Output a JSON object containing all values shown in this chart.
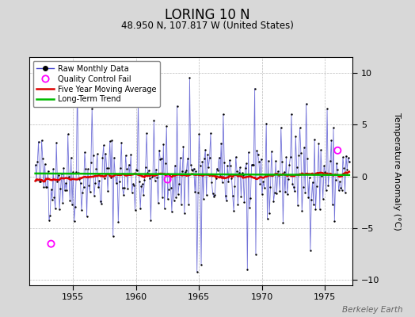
{
  "title": "LORING 10 N",
  "subtitle": "48.950 N, 107.817 W (United States)",
  "ylabel": "Temperature Anomaly (°C)",
  "watermark": "Berkeley Earth",
  "xlim": [
    1951.5,
    1977.2
  ],
  "ylim": [
    -10.5,
    11.5
  ],
  "yticks": [
    -10,
    -5,
    0,
    5,
    10
  ],
  "xticks": [
    1955,
    1960,
    1965,
    1970,
    1975
  ],
  "bg_color": "#d8d8d8",
  "plot_bg": "#ffffff",
  "raw_color": "#4444cc",
  "marker_color": "#000000",
  "moving_avg_color": "#dd0000",
  "trend_color": "#00bb00",
  "qc_fail_color": "#ff00ff",
  "seed": 42,
  "n_months": 300,
  "start_year": 1952.0,
  "trend_slope": -0.006,
  "trend_intercept": 0.28,
  "qc_fail_points": [
    [
      1953.25,
      -6.5
    ],
    [
      1962.5,
      -0.3
    ],
    [
      1976.0,
      2.5
    ]
  ]
}
